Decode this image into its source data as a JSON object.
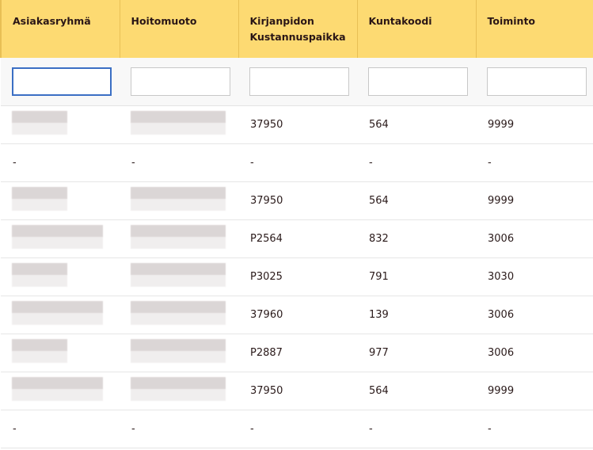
{
  "columns": [
    "Asiakasryhmä",
    "Hoitomuoto",
    "Kirjanpidon Kustannuspaikka",
    "Kuntakoodi",
    "Toiminto"
  ],
  "filters": [
    "",
    "",
    "",
    "",
    ""
  ],
  "rows": [
    {
      "kustannuspaikka": "37950",
      "kuntakoodi": "564",
      "toiminto": "9999",
      "redacted": true
    },
    {
      "asiakasryhma": "-",
      "hoitomuoto": "-",
      "kustannuspaikka": "-",
      "kuntakoodi": "-",
      "toiminto": "-",
      "redacted": false
    },
    {
      "kustannuspaikka": "37950",
      "kuntakoodi": "564",
      "toiminto": "9999",
      "redacted": true
    },
    {
      "kustannuspaikka": "P2564",
      "kuntakoodi": "832",
      "toiminto": "3006",
      "redacted": true
    },
    {
      "kustannuspaikka": "P3025",
      "kuntakoodi": "791",
      "toiminto": "3030",
      "redacted": true
    },
    {
      "kustannuspaikka": "37960",
      "kuntakoodi": "139",
      "toiminto": "3006",
      "redacted": true
    },
    {
      "kustannuspaikka": "P2887",
      "kuntakoodi": "977",
      "toiminto": "3006",
      "redacted": true
    },
    {
      "kustannuspaikka": "37950",
      "kuntakoodi": "564",
      "toiminto": "9999",
      "redacted": true
    },
    {
      "asiakasryhma": "-",
      "hoitomuoto": "-",
      "kustannuspaikka": "-",
      "kuntakoodi": "-",
      "toiminto": "-",
      "redacted": false
    }
  ],
  "colors": {
    "header_bg": "#fdda72",
    "focus": "#3b6fc4"
  }
}
